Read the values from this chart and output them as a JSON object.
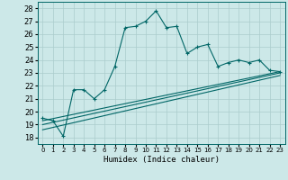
{
  "xlabel": "Humidex (Indice chaleur)",
  "bg_color": "#cce8e8",
  "grid_color": "#aacccc",
  "line_color": "#006666",
  "xlim": [
    -0.5,
    23.5
  ],
  "ylim": [
    17.5,
    28.5
  ],
  "xticks": [
    0,
    1,
    2,
    3,
    4,
    5,
    6,
    7,
    8,
    9,
    10,
    11,
    12,
    13,
    14,
    15,
    16,
    17,
    18,
    19,
    20,
    21,
    22,
    23
  ],
  "yticks": [
    18,
    19,
    20,
    21,
    22,
    23,
    24,
    25,
    26,
    27,
    28
  ],
  "series_x": [
    0,
    1,
    2,
    3,
    4,
    5,
    6,
    7,
    8,
    9,
    10,
    11,
    12,
    13,
    14,
    15,
    16,
    17,
    18,
    19,
    20,
    21,
    22,
    23
  ],
  "series_y": [
    19.5,
    19.3,
    18.1,
    21.7,
    21.7,
    21.0,
    21.7,
    23.5,
    26.5,
    26.6,
    27.0,
    27.8,
    26.5,
    26.6,
    24.5,
    25.0,
    25.2,
    23.5,
    23.8,
    24.0,
    23.8,
    24.0,
    23.2,
    23.1
  ],
  "trend_lines": [
    {
      "x": [
        0,
        23
      ],
      "y": [
        19.3,
        23.1
      ]
    },
    {
      "x": [
        0,
        23
      ],
      "y": [
        19.0,
        23.0
      ]
    },
    {
      "x": [
        0,
        23
      ],
      "y": [
        18.6,
        22.8
      ]
    }
  ]
}
